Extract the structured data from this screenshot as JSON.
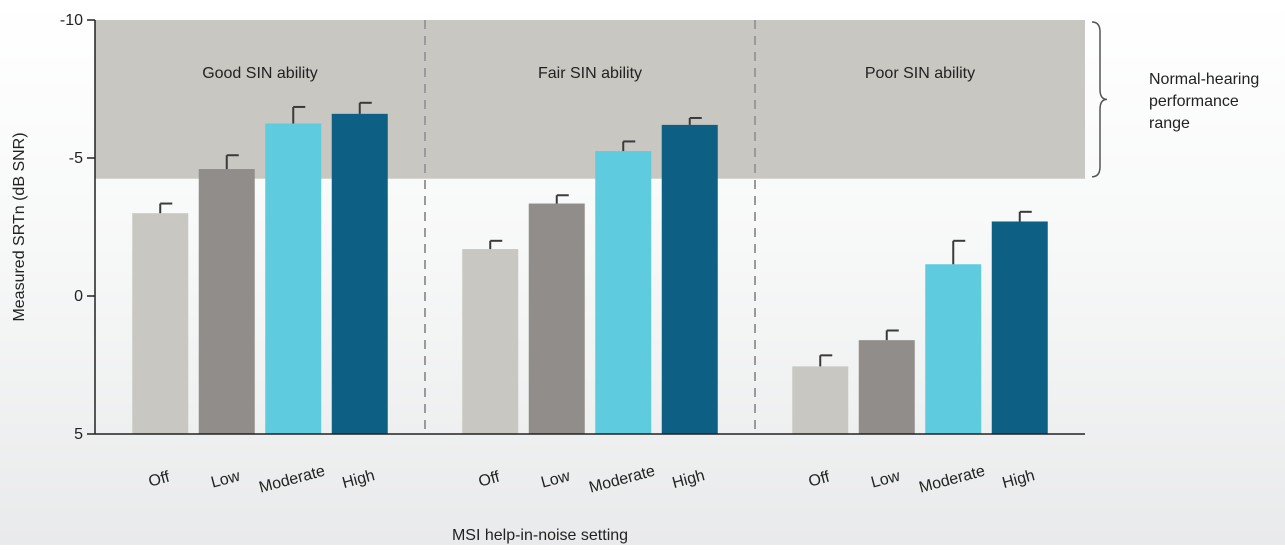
{
  "chart_data": {
    "type": "bar",
    "title": "",
    "xlabel": "MSI help-in-noise setting",
    "ylabel": "Measured SRTn (dB SNR)",
    "ylim": [
      5,
      -10
    ],
    "y_inverted": true,
    "yticks": [
      {
        "value": -10,
        "label": "-10"
      },
      {
        "value": -5,
        "label": "-5"
      },
      {
        "value": 0,
        "label": "0"
      },
      {
        "value": 5,
        "label": "5"
      }
    ],
    "categories": [
      "Off",
      "Low",
      "Moderate",
      "High"
    ],
    "colors": [
      "#c8c7c2",
      "#918d8a",
      "#5ecbdf",
      "#0d5f83"
    ],
    "groups": [
      {
        "label": "Good SIN ability",
        "values": [
          -3.0,
          -4.6,
          -6.25,
          -6.6
        ],
        "errors": [
          0.35,
          0.5,
          0.6,
          0.4
        ]
      },
      {
        "label": "Fair SIN ability",
        "values": [
          -1.7,
          -3.35,
          -5.25,
          -6.2
        ],
        "errors": [
          0.3,
          0.3,
          0.35,
          0.25
        ]
      },
      {
        "label": "Poor SIN ability",
        "values": [
          2.55,
          1.6,
          -1.15,
          -2.7
        ],
        "errors": [
          0.4,
          0.35,
          0.85,
          0.35
        ]
      }
    ],
    "shaded_region": {
      "from": -10,
      "to": -4.25,
      "color": "#c8c7c2",
      "annotation": [
        "Normal-hearing",
        "performance",
        "range"
      ]
    },
    "grid": false,
    "legend": "none"
  }
}
